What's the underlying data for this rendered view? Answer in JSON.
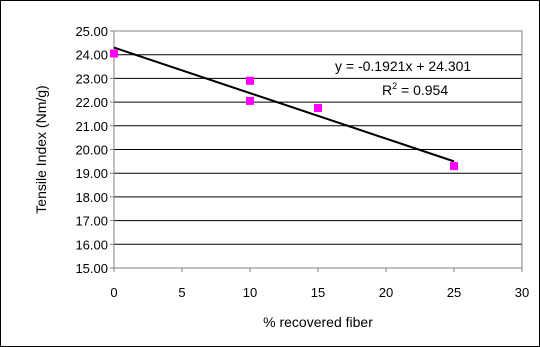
{
  "chart_data": {
    "type": "scatter",
    "title": "",
    "xlabel": "% recovered fiber",
    "ylabel": "Tensile Index (Nm/g)",
    "xlim": [
      0,
      30
    ],
    "ylim": [
      15,
      25
    ],
    "x_ticks": [
      "0",
      "5",
      "10",
      "15",
      "20",
      "25",
      "30"
    ],
    "y_ticks": [
      "15.00",
      "16.00",
      "17.00",
      "18.00",
      "19.00",
      "20.00",
      "21.00",
      "22.00",
      "23.00",
      "24.00",
      "25.00"
    ],
    "grid": "horizontal",
    "legend": "none",
    "series": [
      {
        "marker": "square",
        "color": "#ff00ff",
        "x": [
          0,
          10,
          10,
          15,
          25
        ],
        "y": [
          24.05,
          22.9,
          22.05,
          21.75,
          19.3
        ]
      }
    ],
    "trendline": {
      "type": "linear",
      "slope": -0.1921,
      "intercept": 24.301,
      "x_range": [
        0,
        25
      ],
      "color": "#000000",
      "equation_label": "y = -0.1921x + 24.301",
      "r2_prefix": "R",
      "r2_sup": "2",
      "r2_value": " = 0.954"
    }
  }
}
